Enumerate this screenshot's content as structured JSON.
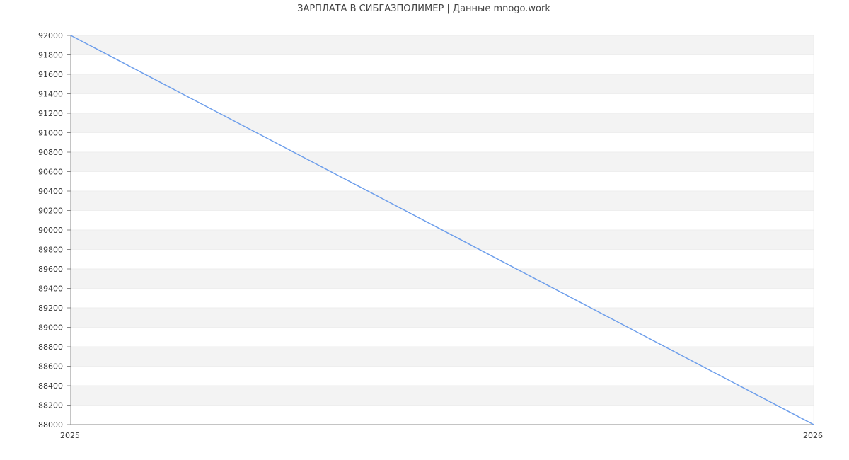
{
  "chart_data": {
    "type": "line",
    "title": "ЗАРПЛАТА В СИБГАЗПОЛИМЕР | Данные mnogo.work",
    "x": [
      "2025",
      "2026"
    ],
    "series": [
      {
        "values": [
          92000,
          88000
        ],
        "color": "#6d9eeb"
      }
    ],
    "xlabel": "",
    "ylabel": "",
    "ylim": [
      88000,
      92000
    ],
    "ytick_step": 200,
    "xticks": [
      "2025",
      "2026"
    ],
    "grid": true,
    "band_colors": [
      "#f3f3f3",
      "#ffffff"
    ],
    "legend": "none"
  }
}
